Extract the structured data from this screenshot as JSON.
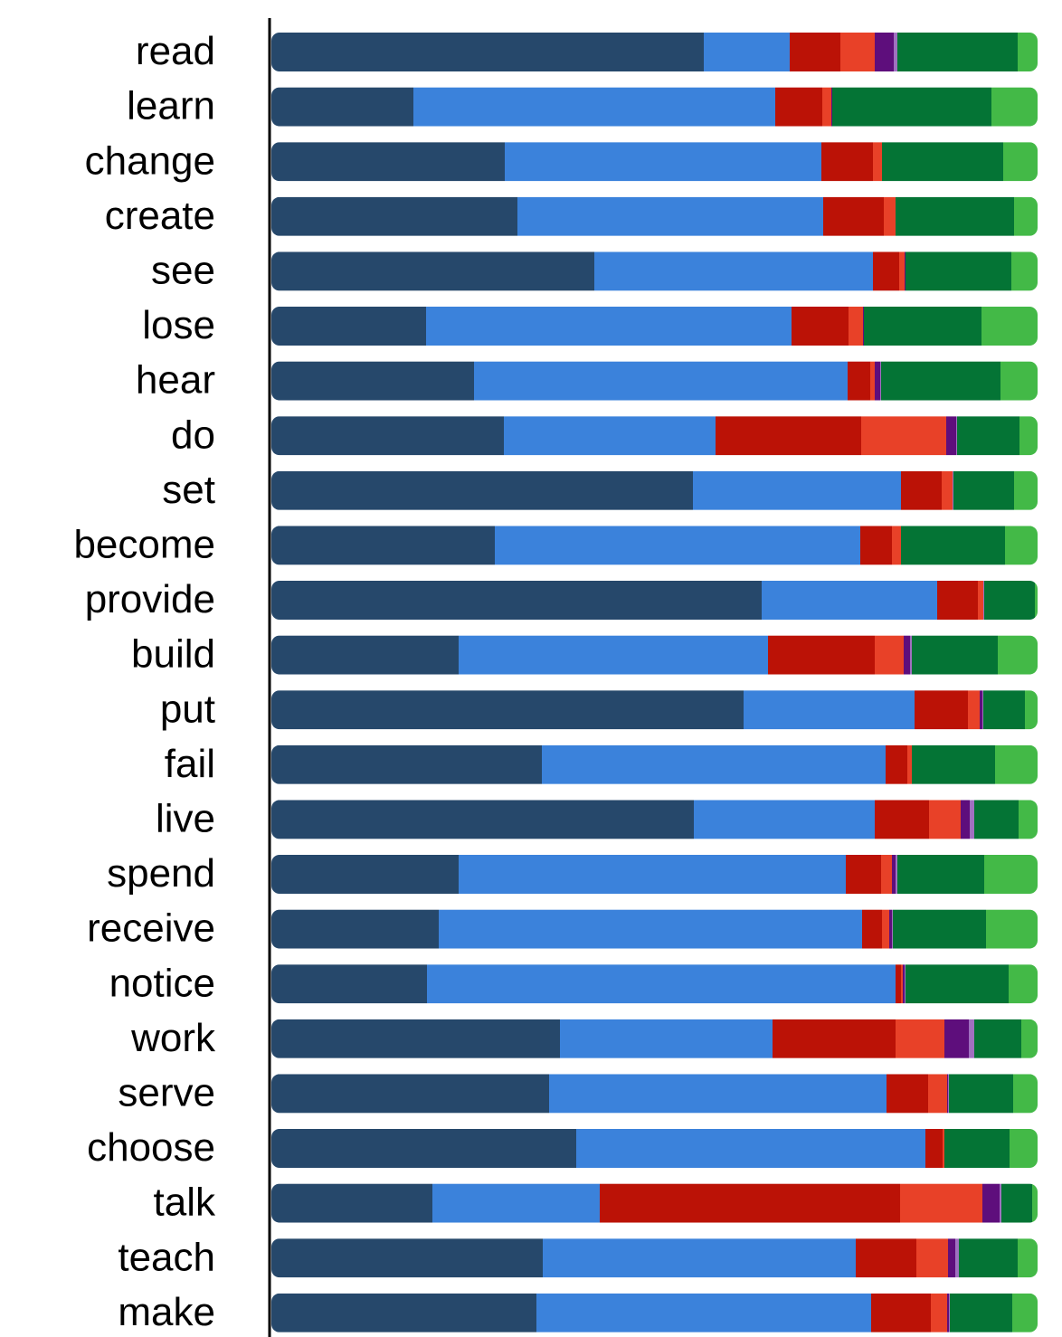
{
  "chart_data": {
    "type": "stacked-bar-horizontal",
    "categories": [
      "read",
      "learn",
      "change",
      "create",
      "see",
      "lose",
      "hear",
      "do",
      "set",
      "become",
      "provide",
      "build",
      "put",
      "fail",
      "live",
      "spend",
      "receive",
      "notice",
      "work",
      "serve",
      "choose",
      "talk",
      "teach",
      "make"
    ],
    "xlim": [
      0,
      847
    ],
    "series": [
      {
        "color": "#26486b",
        "values": [
          478,
          157,
          258,
          272,
          357,
          171,
          224,
          257,
          466,
          247,
          542,
          207,
          522,
          299,
          467,
          207,
          185,
          172,
          319,
          307,
          337,
          178,
          300,
          293
        ]
      },
      {
        "color": "#3b82db",
        "values": [
          95,
          400,
          350,
          338,
          308,
          404,
          413,
          234,
          230,
          404,
          194,
          342,
          189,
          380,
          200,
          428,
          468,
          518,
          235,
          373,
          386,
          185,
          346,
          370
        ]
      },
      {
        "color": "#bb1206",
        "values": [
          56,
          52,
          57,
          67,
          29,
          63,
          25,
          161,
          45,
          35,
          45,
          118,
          59,
          24,
          60,
          39,
          22,
          6,
          136,
          46,
          19,
          332,
          67,
          66
        ]
      },
      {
        "color": "#e84128",
        "values": [
          38,
          10,
          10,
          13,
          6,
          16,
          5,
          94,
          12,
          10,
          6,
          32,
          13,
          5,
          35,
          12,
          8,
          2,
          54,
          21,
          2,
          91,
          35,
          18
        ]
      },
      {
        "color": "#5e0e7c",
        "values": [
          21,
          1,
          0,
          0,
          1,
          1,
          6,
          11,
          0,
          0,
          0,
          7,
          3,
          0,
          10,
          4,
          3,
          2,
          27,
          1,
          0,
          19,
          8,
          2
        ]
      },
      {
        "color": "#a070c0",
        "values": [
          4,
          0,
          0,
          0,
          0,
          0,
          1,
          1,
          1,
          0,
          1,
          2,
          1,
          0,
          5,
          2,
          1,
          1,
          6,
          1,
          0,
          2,
          4,
          1
        ]
      },
      {
        "color": "#047435",
        "values": [
          133,
          176,
          134,
          131,
          117,
          130,
          132,
          69,
          67,
          115,
          56,
          95,
          46,
          92,
          49,
          96,
          103,
          114,
          52,
          71,
          72,
          34,
          65,
          69
        ]
      },
      {
        "color": "#43b947",
        "values": [
          22,
          51,
          38,
          26,
          29,
          62,
          41,
          20,
          26,
          36,
          3,
          44,
          14,
          47,
          21,
          59,
          57,
          32,
          18,
          27,
          31,
          6,
          22,
          28
        ]
      }
    ]
  }
}
